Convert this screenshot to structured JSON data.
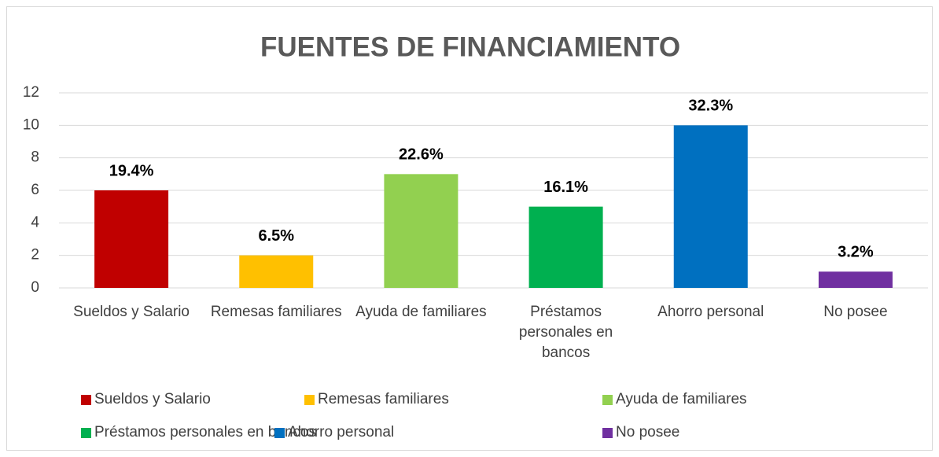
{
  "chart_data": {
    "type": "bar",
    "title": "FUENTES DE FINANCIAMIENTO",
    "categories": [
      "Sueldos y Salario",
      "Remesas familiares",
      "Ayuda de familiares",
      "Préstamos personales en bancos",
      "Ahorro personal",
      "No posee"
    ],
    "values": [
      6,
      2,
      7,
      5,
      10,
      1
    ],
    "colors": [
      "#c00000",
      "#ffc000",
      "#92d050",
      "#00b050",
      "#0070c0",
      "#7030a0"
    ],
    "data_labels": {
      "values": [
        19.4,
        6.5,
        22.6,
        16.1,
        32.3,
        3.2
      ],
      "value_labels": [
        "19.4%",
        "6.5%",
        "22.6%",
        "16.1%",
        "32.3%",
        "3.2%"
      ]
    },
    "ylim": [
      0,
      12
    ],
    "yticks": [
      0,
      2,
      4,
      6,
      8,
      10,
      12
    ],
    "grid": true,
    "legend": "bottom"
  }
}
